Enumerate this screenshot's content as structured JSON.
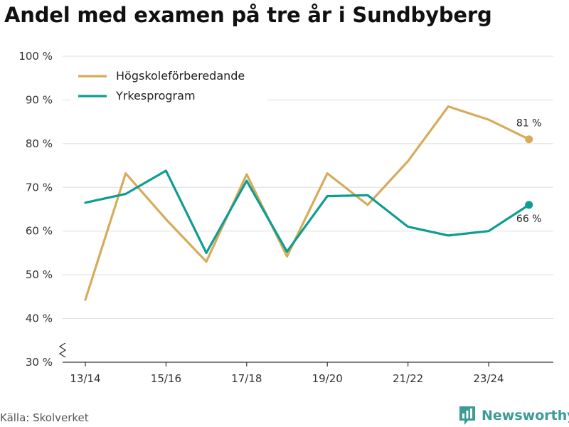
{
  "title": "Andel med examen på tre år i Sundbyberg",
  "source": "Källa: Skolverket",
  "brand": {
    "name": "Newsworthy",
    "icon": "newsworthy-logo-icon",
    "color": "#3a9b97"
  },
  "colors": {
    "hog": "#d6ac5a",
    "yrk": "#0e9d93",
    "grid": "#dddddd",
    "axis": "#333333"
  },
  "chart_data": {
    "type": "line",
    "title": "Andel med examen på tre år i Sundbyberg",
    "x": [
      "13/14",
      "14/15",
      "15/16",
      "16/17",
      "17/18",
      "18/19",
      "19/20",
      "20/21",
      "21/22",
      "22/23",
      "23/24",
      "24/25"
    ],
    "x_tick_labels": [
      "13/14",
      "15/16",
      "17/18",
      "19/20",
      "21/22",
      "23/24"
    ],
    "y_ticks": [
      30,
      40,
      50,
      60,
      70,
      80,
      90,
      100
    ],
    "y_tick_labels": [
      "30 %",
      "40 %",
      "50 %",
      "60 %",
      "70 %",
      "80 %",
      "90 %",
      "100 %"
    ],
    "ylim": [
      30,
      100
    ],
    "xlabel": "",
    "ylabel": "",
    "legend_position": "top-left",
    "grid": true,
    "series": [
      {
        "name": "Högskoleförberedande",
        "color": "#d6ac5a",
        "values": [
          44.3,
          73.2,
          62.7,
          53.0,
          73.0,
          54.2,
          73.2,
          66.0,
          76.0,
          88.5,
          85.5,
          81.0
        ],
        "end_label": "81 %"
      },
      {
        "name": "Yrkesprogram",
        "color": "#0e9d93",
        "values": [
          66.5,
          68.5,
          73.8,
          55.0,
          71.5,
          55.3,
          68.0,
          68.2,
          61.0,
          59.0,
          60.0,
          66.0
        ],
        "end_label": "66 %"
      }
    ]
  }
}
